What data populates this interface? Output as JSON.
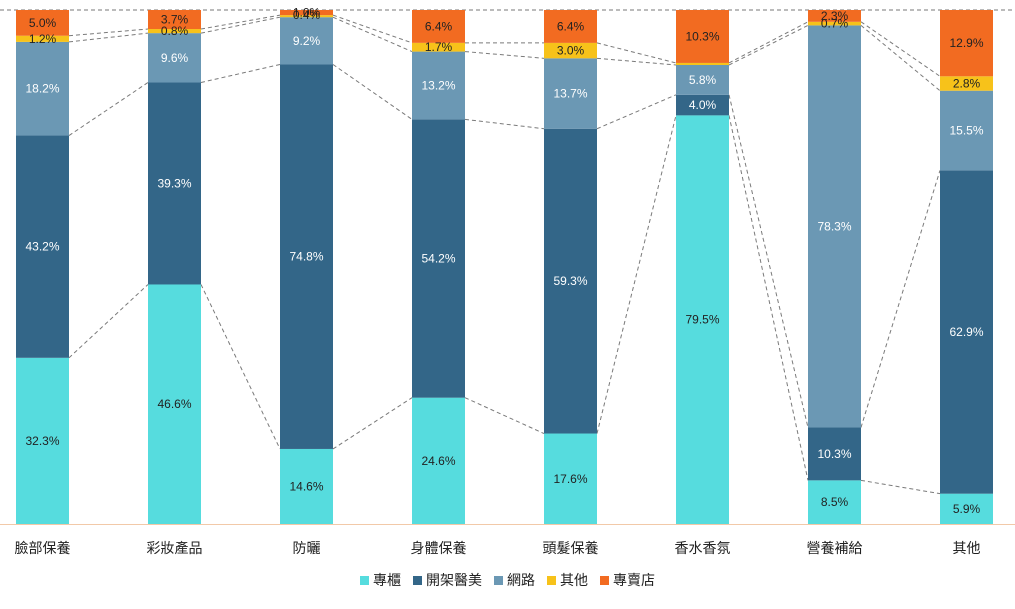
{
  "chart_data": {
    "type": "bar",
    "stacked": true,
    "percent": true,
    "categories": [
      "臉部保養",
      "彩妝產品",
      "防曬",
      "身體保養",
      "頭髮保養",
      "香水香氛",
      "營養補給",
      "其他"
    ],
    "series": [
      {
        "name": "專櫃",
        "color": "#56dcde",
        "label_color": "#222222",
        "values": [
          32.3,
          46.6,
          14.6,
          24.6,
          17.6,
          79.5,
          8.5,
          5.9
        ]
      },
      {
        "name": "開架醫美",
        "color": "#336688",
        "label_color": "#ffffff",
        "values": [
          43.2,
          39.3,
          74.8,
          54.2,
          59.3,
          4.0,
          10.3,
          62.9
        ]
      },
      {
        "name": "網路",
        "color": "#6b98b4",
        "label_color": "#ffffff",
        "values": [
          18.2,
          9.6,
          9.2,
          13.2,
          13.7,
          5.8,
          78.3,
          15.5
        ]
      },
      {
        "name": "其他",
        "color": "#f7c21a",
        "label_color": "#222222",
        "values": [
          1.2,
          0.8,
          0.4,
          1.7,
          3.0,
          0.4,
          0.7,
          2.8
        ]
      },
      {
        "name": "專賣店",
        "color": "#f26b21",
        "label_color": "#222222",
        "values": [
          5.0,
          3.7,
          1.0,
          6.4,
          6.4,
          10.3,
          2.3,
          12.9
        ]
      }
    ],
    "labels": [
      [
        "32.3%",
        "46.6%",
        "14.6%",
        "24.6%",
        "17.6%",
        "79.5%",
        "8.5%",
        "5.9%"
      ],
      [
        "43.2%",
        "39.3%",
        "74.8%",
        "54.2%",
        "59.3%",
        "4.0%",
        "10.3%",
        "62.9%"
      ],
      [
        "18.2%",
        "9.6%",
        "9.2%",
        "13.2%",
        "13.7%",
        "5.8%",
        "78.3%",
        "15.5%"
      ],
      [
        "1.2%",
        "0.8%",
        "0.4%",
        "1.7%",
        "3.0%",
        "",
        "0.7%",
        "2.8%"
      ],
      [
        "5.0%",
        "3.7%",
        "1.0%",
        "6.4%",
        "6.4%",
        "10.3%",
        "2.3%",
        "12.9%"
      ]
    ],
    "ylim": [
      0,
      100
    ],
    "legend_position": "bottom",
    "series_lines": "dashed"
  }
}
